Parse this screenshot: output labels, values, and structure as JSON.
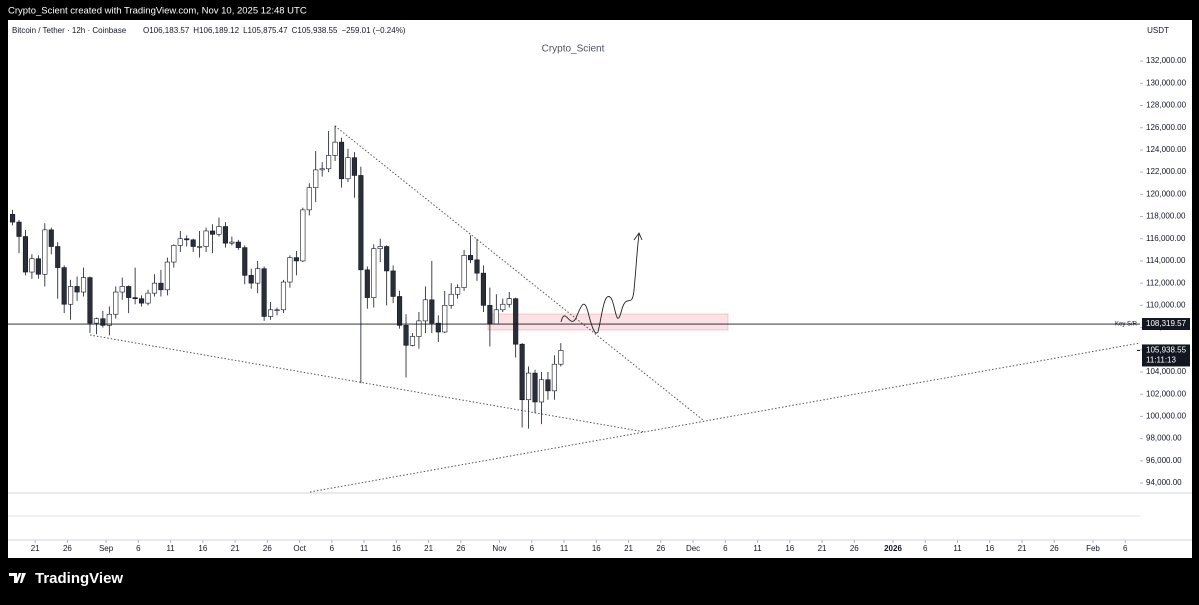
{
  "page": {
    "credit": "Crypto_Scient created with TradingView.com, Nov 10, 2025 12:48 UTC",
    "brand": "TradingView"
  },
  "chart_data": {
    "type": "candlestick",
    "symbol": "Bitcoin / Tether · 12h · Coinbase",
    "ohlc_labels": [
      "O106,183.57",
      "H106,189.12",
      "L105,875.47",
      "C105,938.55",
      "−259.01 (−0.24%)"
    ],
    "watermark": "Crypto_Scient",
    "currency": "USDT",
    "x": [
      "2025-08-17",
      "2025-08-18",
      "2025-08-19",
      "2025-08-20",
      "2025-08-21",
      "2025-08-22",
      "2025-08-23",
      "2025-08-24",
      "2025-08-25",
      "2025-08-26",
      "2025-08-27",
      "2025-08-28",
      "2025-08-29",
      "2025-08-30",
      "2025-08-31",
      "2025-09-01",
      "2025-09-02",
      "2025-09-03",
      "2025-09-04",
      "2025-09-05",
      "2025-09-06",
      "2025-09-07",
      "2025-09-08",
      "2025-09-09",
      "2025-09-10",
      "2025-09-11",
      "2025-09-12",
      "2025-09-13",
      "2025-09-14",
      "2025-09-15",
      "2025-09-16",
      "2025-09-17",
      "2025-09-18",
      "2025-09-19",
      "2025-09-20",
      "2025-09-21",
      "2025-09-22",
      "2025-09-23",
      "2025-09-24",
      "2025-09-25",
      "2025-09-26",
      "2025-09-27",
      "2025-09-28",
      "2025-09-29",
      "2025-09-30",
      "2025-10-01",
      "2025-10-02",
      "2025-10-03",
      "2025-10-04",
      "2025-10-05",
      "2025-10-06",
      "2025-10-07",
      "2025-10-08",
      "2025-10-09",
      "2025-10-10",
      "2025-10-11",
      "2025-10-12",
      "2025-10-13",
      "2025-10-14",
      "2025-10-15",
      "2025-10-16",
      "2025-10-17",
      "2025-10-18",
      "2025-10-19",
      "2025-10-20",
      "2025-10-21",
      "2025-10-22",
      "2025-10-23",
      "2025-10-24",
      "2025-10-25",
      "2025-10-26",
      "2025-10-27",
      "2025-10-28",
      "2025-10-29",
      "2025-10-30",
      "2025-10-31",
      "2025-11-01",
      "2025-11-02",
      "2025-11-03",
      "2025-11-04",
      "2025-11-05",
      "2025-11-06",
      "2025-11-07",
      "2025-11-08",
      "2025-11-09",
      "2025-11-10"
    ],
    "open": [
      118200,
      117500,
      116200,
      113000,
      114200,
      112800,
      116800,
      115300,
      113400,
      110100,
      111700,
      111200,
      112500,
      108400,
      108800,
      108200,
      109200,
      111200,
      111700,
      110700,
      110600,
      110200,
      111100,
      112000,
      111400,
      113900,
      115400,
      116000,
      115900,
      115300,
      115300,
      116700,
      116400,
      117100,
      115600,
      115700,
      115200,
      112700,
      112000,
      113300,
      109000,
      109600,
      109600,
      112100,
      114300,
      114000,
      118600,
      120600,
      122200,
      122300,
      123500,
      124700,
      121400,
      123300,
      121700,
      113200,
      110700,
      115100,
      115300,
      113100,
      110800,
      108200,
      106400,
      107200,
      108600,
      110500,
      108400,
      107600,
      110000,
      111000,
      111600,
      114500,
      114100,
      112900,
      110000,
      108300,
      109600,
      110100,
      110600,
      106500,
      101500,
      103900,
      101300,
      103300,
      102300,
      104700
    ],
    "high": [
      118600,
      117700,
      116800,
      114600,
      114500,
      117400,
      117000,
      115700,
      113600,
      112300,
      112600,
      113400,
      112600,
      108900,
      109500,
      109900,
      111700,
      112500,
      111800,
      113400,
      110900,
      111400,
      112800,
      113200,
      114300,
      115500,
      116700,
      116300,
      116000,
      116700,
      117000,
      117300,
      117900,
      117500,
      116200,
      115900,
      115400,
      113300,
      114000,
      113500,
      110300,
      109800,
      112300,
      114500,
      114900,
      118800,
      121000,
      123900,
      122900,
      125700,
      126200,
      125100,
      124100,
      123800,
      122500,
      113500,
      115500,
      116000,
      115400,
      113600,
      111300,
      109200,
      107500,
      109400,
      111700,
      114000,
      109100,
      111300,
      112000,
      111900,
      115000,
      116300,
      116000,
      113600,
      111600,
      111000,
      110600,
      111200,
      110700,
      106600,
      104500,
      104200,
      104000,
      104000,
      105500,
      106600
    ],
    "low": [
      117200,
      114700,
      112700,
      112400,
      112400,
      111700,
      114600,
      110600,
      109300,
      108700,
      110400,
      110800,
      107500,
      107400,
      108000,
      107300,
      108800,
      110500,
      109300,
      110100,
      109900,
      110000,
      110800,
      110800,
      110900,
      113400,
      114800,
      115300,
      114800,
      114300,
      114800,
      114700,
      116200,
      115200,
      115400,
      115000,
      111900,
      111500,
      111100,
      108600,
      108700,
      109100,
      109300,
      111600,
      112700,
      113900,
      118100,
      119300,
      121600,
      122000,
      123000,
      120600,
      121100,
      119700,
      103000,
      109700,
      109800,
      113900,
      110000,
      110200,
      107900,
      103500,
      106300,
      106100,
      107500,
      107500,
      106700,
      107500,
      109700,
      110600,
      111300,
      113800,
      112200,
      109400,
      106300,
      108300,
      109400,
      109800,
      105300,
      99000,
      98900,
      100300,
      99300,
      101500,
      101500,
      104500
    ],
    "close": [
      117500,
      116200,
      113000,
      114200,
      112800,
      116800,
      115300,
      113400,
      110100,
      111700,
      111200,
      112500,
      108400,
      108800,
      108200,
      109200,
      111200,
      111700,
      110700,
      110600,
      110200,
      111100,
      112000,
      111400,
      113900,
      115400,
      116000,
      115900,
      115300,
      115300,
      116700,
      116400,
      117100,
      115600,
      115700,
      115200,
      112700,
      112000,
      113300,
      109000,
      109600,
      109600,
      112100,
      114300,
      114000,
      118600,
      120600,
      122200,
      122300,
      123500,
      124700,
      121400,
      123300,
      121700,
      113200,
      110700,
      115100,
      115300,
      113100,
      110800,
      108200,
      106400,
      107200,
      108600,
      110500,
      108400,
      107600,
      110000,
      111000,
      111600,
      114500,
      114100,
      112900,
      110000,
      108300,
      109600,
      110100,
      110600,
      106500,
      101500,
      103900,
      101300,
      103300,
      102300,
      104700,
      105938.55
    ],
    "up_color": "#ffffff",
    "down_color": "#2a2e39",
    "edge_color": "#131722",
    "ylim": [
      93100,
      135700
    ],
    "yticks": [
      {
        "value": 94000,
        "label": "94,000.00"
      },
      {
        "value": 96000,
        "label": "96,000.00"
      },
      {
        "value": 98000,
        "label": "98,000.00"
      },
      {
        "value": 100000,
        "label": "100,000.00"
      },
      {
        "value": 102000,
        "label": "102,000.00"
      },
      {
        "value": 104000,
        "label": "104,000.00"
      },
      {
        "value": 106000,
        "label": "106,000.00"
      },
      {
        "value": 108000,
        "label": "108,000.00"
      },
      {
        "value": 110000,
        "label": "110,000.00"
      },
      {
        "value": 112000,
        "label": "112,000.00"
      },
      {
        "value": 114000,
        "label": "114,000.00"
      },
      {
        "value": 116000,
        "label": "116,000.00"
      },
      {
        "value": 118000,
        "label": "118,000.00"
      },
      {
        "value": 120000,
        "label": "120,000.00"
      },
      {
        "value": 122000,
        "label": "122,000.00"
      },
      {
        "value": 124000,
        "label": "124,000.00"
      },
      {
        "value": 126000,
        "label": "126,000.00"
      },
      {
        "value": 128000,
        "label": "128,000.00"
      },
      {
        "value": 130000,
        "label": "130,000.00"
      },
      {
        "value": 132000,
        "label": "132,000.00"
      }
    ],
    "xlim": [
      "2025-08-16T19:00:00Z",
      "2026-02-08T07:00:00Z"
    ],
    "xticks": [
      {
        "value": "2025-08-21",
        "label": "21"
      },
      {
        "value": "2025-08-26",
        "label": "26"
      },
      {
        "value": "2025-09-01",
        "label": "Sep"
      },
      {
        "value": "2025-09-06",
        "label": "6"
      },
      {
        "value": "2025-09-11",
        "label": "11"
      },
      {
        "value": "2025-09-16",
        "label": "16"
      },
      {
        "value": "2025-09-21",
        "label": "21"
      },
      {
        "value": "2025-09-26",
        "label": "26"
      },
      {
        "value": "2025-10-01",
        "label": "Oct"
      },
      {
        "value": "2025-10-06",
        "label": "6"
      },
      {
        "value": "2025-10-11",
        "label": "11"
      },
      {
        "value": "2025-10-16",
        "label": "16"
      },
      {
        "value": "2025-10-21",
        "label": "21"
      },
      {
        "value": "2025-10-26",
        "label": "26"
      },
      {
        "value": "2025-11-01",
        "label": "Nov"
      },
      {
        "value": "2025-11-06",
        "label": "6"
      },
      {
        "value": "2025-11-11",
        "label": "11"
      },
      {
        "value": "2025-11-16",
        "label": "16"
      },
      {
        "value": "2025-11-21",
        "label": "21"
      },
      {
        "value": "2025-11-26",
        "label": "26"
      },
      {
        "value": "2025-12-01",
        "label": "Dec"
      },
      {
        "value": "2025-12-06",
        "label": "6"
      },
      {
        "value": "2025-12-11",
        "label": "11"
      },
      {
        "value": "2025-12-16",
        "label": "16"
      },
      {
        "value": "2025-12-21",
        "label": "21"
      },
      {
        "value": "2025-12-26",
        "label": "26"
      },
      {
        "value": "2026-01-01",
        "label": "2026"
      },
      {
        "value": "2026-01-06",
        "label": "6"
      },
      {
        "value": "2026-01-11",
        "label": "11"
      },
      {
        "value": "2026-01-16",
        "label": "16"
      },
      {
        "value": "2026-01-21",
        "label": "21"
      },
      {
        "value": "2026-01-26",
        "label": "26"
      },
      {
        "value": "2026-02-01",
        "label": "Feb"
      },
      {
        "value": "2026-02-06",
        "label": "6"
      }
    ],
    "key_level": {
      "name": "Key S/R",
      "value": 108319.57,
      "label": "108,319.57"
    },
    "last_price": {
      "value": 105938.55,
      "label": "105,938.55",
      "countdown": "11:11:13"
    }
  }
}
